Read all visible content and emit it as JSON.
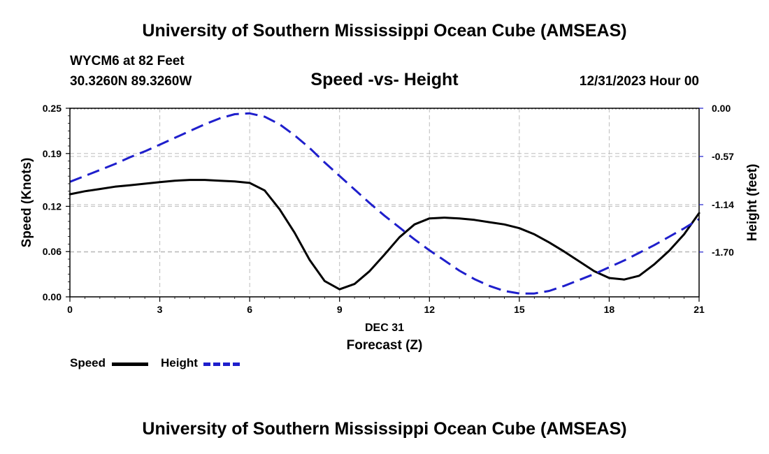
{
  "header": {
    "title": "University of Southern Mississippi Ocean Cube (AMSEAS)",
    "station": "WYCM6 at 82 Feet",
    "coords": "30.3260N  89.3260W",
    "subtitle": "Speed -vs- Height",
    "datetime": "12/31/2023 Hour 00"
  },
  "footer": {
    "title": "University of Southern Mississippi Ocean Cube (AMSEAS)"
  },
  "legend": {
    "speed_label": "Speed",
    "height_label": "Height"
  },
  "chart_data": {
    "type": "line",
    "x_date_label": "DEC 31",
    "xlabel": "Forecast (Z)",
    "ylabel_left": "Speed (Knots)",
    "ylabel_right": "Height (feet)",
    "x_range": [
      0,
      21
    ],
    "x_ticks": [
      "0",
      "3",
      "6",
      "9",
      "12",
      "15",
      "18",
      "21"
    ],
    "y_left_range": [
      0,
      0.25
    ],
    "y_left_ticks": [
      "0.00",
      "0.06",
      "0.12",
      "0.19",
      "0.25"
    ],
    "y_right_range": [
      -2.23,
      0.0
    ],
    "y_right_ticks": [
      "0.00",
      "-0.57",
      "-1.14",
      "-1.70"
    ],
    "grid": true,
    "series": [
      {
        "name": "Speed",
        "axis": "left",
        "color": "#000000",
        "style": "solid",
        "x": [
          0,
          0.5,
          1,
          1.5,
          2,
          2.5,
          3,
          3.5,
          4,
          4.5,
          5,
          5.5,
          6,
          6.5,
          7,
          7.5,
          8,
          8.5,
          9,
          9.5,
          10,
          10.5,
          11,
          11.5,
          12,
          12.5,
          13,
          13.5,
          14,
          14.5,
          15,
          15.5,
          16,
          16.5,
          17,
          17.5,
          18,
          18.5,
          19,
          19.5,
          20,
          20.5,
          21
        ],
        "values": [
          0.136,
          0.14,
          0.143,
          0.146,
          0.148,
          0.15,
          0.152,
          0.154,
          0.155,
          0.155,
          0.154,
          0.153,
          0.151,
          0.141,
          0.116,
          0.085,
          0.049,
          0.021,
          0.01,
          0.017,
          0.034,
          0.056,
          0.079,
          0.096,
          0.104,
          0.105,
          0.104,
          0.102,
          0.099,
          0.096,
          0.091,
          0.083,
          0.072,
          0.06,
          0.047,
          0.034,
          0.025,
          0.023,
          0.028,
          0.043,
          0.061,
          0.083,
          0.111
        ]
      },
      {
        "name": "Height",
        "axis": "right",
        "color": "#1f1fcc",
        "style": "dashed",
        "x": [
          0,
          0.5,
          1,
          1.5,
          2,
          2.5,
          3,
          3.5,
          4,
          4.5,
          5,
          5.5,
          6,
          6.5,
          7,
          7.5,
          8,
          8.5,
          9,
          9.5,
          10,
          10.5,
          11,
          11.5,
          12,
          12.5,
          13,
          13.5,
          14,
          14.5,
          15,
          15.5,
          16,
          16.5,
          17,
          17.5,
          18,
          18.5,
          19,
          19.5,
          20,
          20.5,
          21
        ],
        "values": [
          -0.87,
          -0.8,
          -0.73,
          -0.66,
          -0.58,
          -0.51,
          -0.43,
          -0.35,
          -0.27,
          -0.19,
          -0.12,
          -0.07,
          -0.06,
          -0.1,
          -0.19,
          -0.32,
          -0.47,
          -0.64,
          -0.8,
          -0.96,
          -1.12,
          -1.27,
          -1.41,
          -1.55,
          -1.68,
          -1.8,
          -1.92,
          -2.02,
          -2.1,
          -2.16,
          -2.19,
          -2.19,
          -2.16,
          -2.1,
          -2.03,
          -1.96,
          -1.88,
          -1.8,
          -1.71,
          -1.62,
          -1.52,
          -1.42,
          -1.31
        ]
      }
    ]
  }
}
